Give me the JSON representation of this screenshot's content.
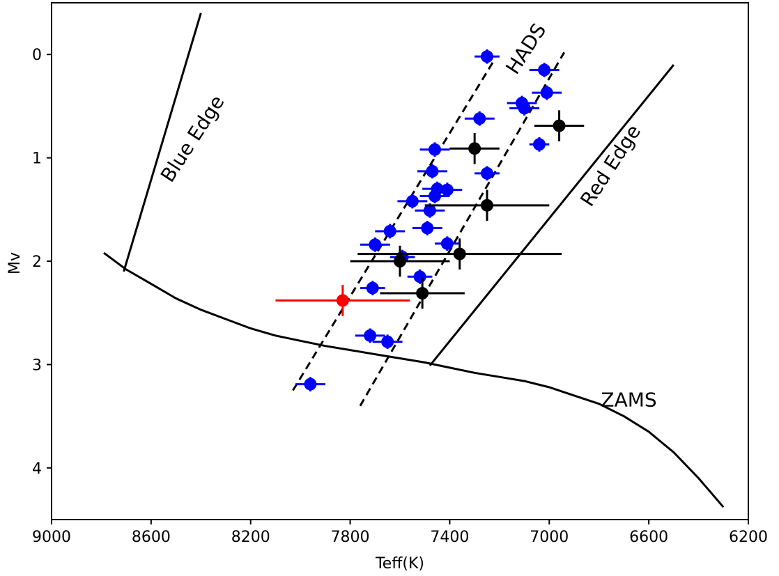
{
  "chart_data": {
    "type": "scatter",
    "title": "",
    "xlabel": "Teff(K)",
    "ylabel": "Mv",
    "xlim": [
      9000,
      6200
    ],
    "ylim": [
      4.5,
      -0.5
    ],
    "x_inverted": true,
    "y_inverted": true,
    "xticks": [
      9000,
      8600,
      8200,
      7800,
      7400,
      7000,
      6600,
      6200
    ],
    "yticks": [
      0,
      1,
      2,
      3,
      4
    ],
    "grid": false,
    "series": [
      {
        "color": "#0000ff",
        "points": [
          {
            "x": 7250,
            "y": 0.02,
            "xerr": 50,
            "yerr": 0.07
          },
          {
            "x": 7020,
            "y": 0.15,
            "xerr": 60,
            "yerr": 0.07
          },
          {
            "x": 7010,
            "y": 0.37,
            "xerr": 60,
            "yerr": 0.07
          },
          {
            "x": 7110,
            "y": 0.47,
            "xerr": 60,
            "yerr": 0.07
          },
          {
            "x": 7100,
            "y": 0.52,
            "xerr": 60,
            "yerr": 0.07
          },
          {
            "x": 7280,
            "y": 0.62,
            "xerr": 60,
            "yerr": 0.07
          },
          {
            "x": 7040,
            "y": 0.87,
            "xerr": 40,
            "yerr": 0.07
          },
          {
            "x": 7460,
            "y": 0.92,
            "xerr": 60,
            "yerr": 0.07
          },
          {
            "x": 7470,
            "y": 1.13,
            "xerr": 60,
            "yerr": 0.07
          },
          {
            "x": 7250,
            "y": 1.15,
            "xerr": 50,
            "yerr": 0.07
          },
          {
            "x": 7450,
            "y": 1.3,
            "xerr": 60,
            "yerr": 0.07
          },
          {
            "x": 7410,
            "y": 1.31,
            "xerr": 60,
            "yerr": 0.07
          },
          {
            "x": 7460,
            "y": 1.37,
            "xerr": 60,
            "yerr": 0.07
          },
          {
            "x": 7550,
            "y": 1.42,
            "xerr": 60,
            "yerr": 0.07
          },
          {
            "x": 7480,
            "y": 1.51,
            "xerr": 60,
            "yerr": 0.07
          },
          {
            "x": 7490,
            "y": 1.68,
            "xerr": 60,
            "yerr": 0.07
          },
          {
            "x": 7640,
            "y": 1.71,
            "xerr": 60,
            "yerr": 0.07
          },
          {
            "x": 7410,
            "y": 1.83,
            "xerr": 50,
            "yerr": 0.07
          },
          {
            "x": 7700,
            "y": 1.84,
            "xerr": 60,
            "yerr": 0.07
          },
          {
            "x": 7590,
            "y": 1.96,
            "xerr": 50,
            "yerr": 0.07
          },
          {
            "x": 7520,
            "y": 2.15,
            "xerr": 50,
            "yerr": 0.07
          },
          {
            "x": 7710,
            "y": 2.26,
            "xerr": 50,
            "yerr": 0.07
          },
          {
            "x": 7720,
            "y": 2.72,
            "xerr": 60,
            "yerr": 0.07
          },
          {
            "x": 7650,
            "y": 2.78,
            "xerr": 60,
            "yerr": 0.07
          },
          {
            "x": 7960,
            "y": 3.19,
            "xerr": 60,
            "yerr": 0.07
          }
        ]
      },
      {
        "color": "#000000",
        "points": [
          {
            "x": 6960,
            "y": 0.69,
            "xerr": 100,
            "yerr": 0.15
          },
          {
            "x": 7300,
            "y": 0.91,
            "xerr": 100,
            "yerr": 0.15
          },
          {
            "x": 7250,
            "y": 1.46,
            "xerr": 250,
            "yerr": 0.15
          },
          {
            "x": 7360,
            "y": 1.93,
            "xerr": 410,
            "yerr": 0.15
          },
          {
            "x": 7600,
            "y": 2.0,
            "xerr": 200,
            "yerr": 0.15
          },
          {
            "x": 7510,
            "y": 2.31,
            "xerr": 170,
            "yerr": 0.15
          }
        ]
      },
      {
        "color": "#ff0000",
        "points": [
          {
            "x": 7830,
            "y": 2.38,
            "xerr": 270,
            "yerr": 0.15
          }
        ]
      }
    ],
    "lines": [
      {
        "style": "solid",
        "points": [
          [
            8710,
            2.1
          ],
          [
            8400,
            -0.4
          ]
        ]
      },
      {
        "style": "solid",
        "points": [
          [
            7480,
            3.01
          ],
          [
            6500,
            0.1
          ]
        ]
      },
      {
        "style": "dashed",
        "points": [
          [
            8030,
            3.25
          ],
          [
            7220,
            0.05
          ]
        ]
      },
      {
        "style": "dashed",
        "points": [
          [
            7760,
            3.4
          ],
          [
            6940,
            -0.02
          ]
        ]
      },
      {
        "style": "solid",
        "points": [
          [
            8790,
            1.92
          ],
          [
            8700,
            2.08
          ],
          [
            8600,
            2.22
          ],
          [
            8500,
            2.36
          ],
          [
            8400,
            2.47
          ],
          [
            8300,
            2.56
          ],
          [
            8200,
            2.65
          ],
          [
            8100,
            2.72
          ],
          [
            8000,
            2.77
          ],
          [
            7900,
            2.82
          ],
          [
            7800,
            2.86
          ],
          [
            7700,
            2.9
          ],
          [
            7600,
            2.94
          ],
          [
            7500,
            2.98
          ],
          [
            7400,
            3.03
          ],
          [
            7300,
            3.08
          ],
          [
            7200,
            3.12
          ],
          [
            7100,
            3.16
          ],
          [
            7000,
            3.22
          ],
          [
            6900,
            3.3
          ],
          [
            6800,
            3.38
          ],
          [
            6700,
            3.5
          ],
          [
            6600,
            3.65
          ],
          [
            6500,
            3.85
          ],
          [
            6400,
            4.1
          ],
          [
            6300,
            4.38
          ]
        ]
      }
    ],
    "annotations": [
      {
        "text": "Blue Edge",
        "x": 8430,
        "y": 0.82,
        "rotation": -57
      },
      {
        "text": "HADS",
        "x": 7090,
        "y": -0.05,
        "rotation": -57
      },
      {
        "text": "Red Edge",
        "x": 6750,
        "y": 1.08,
        "rotation": -57
      },
      {
        "text": "ZAMS",
        "x": 6680,
        "y": 3.35,
        "rotation": 0
      }
    ]
  }
}
